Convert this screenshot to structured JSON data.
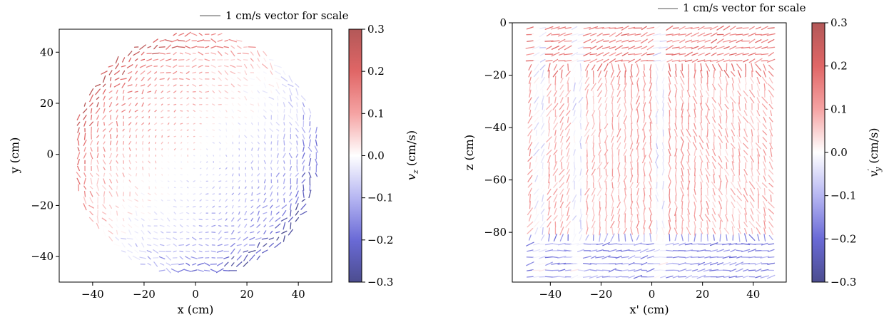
{
  "chart_data": [
    {
      "type": "quiver",
      "title": "",
      "xlabel": "x (cm)",
      "ylabel": "y (cm)",
      "xlim": [
        -53,
        53
      ],
      "ylim": [
        -50,
        49
      ],
      "xticks": [
        -40,
        -20,
        0,
        20,
        40
      ],
      "yticks": [
        -40,
        -20,
        0,
        20,
        40
      ],
      "xtick_labels": [
        "−40",
        "−20",
        "0",
        "20",
        "40"
      ],
      "ytick_labels": [
        "−40",
        "−20",
        "0",
        "20",
        "40"
      ],
      "scale_label": "1 cm/s vector for scale",
      "domain_shape": "disk",
      "domain_radius_cm": 48,
      "grid_spacing_cm": 2.5,
      "color_quantity": "v_z",
      "colorbar": {
        "label_symbol": "v",
        "label_subscript": "z",
        "label_unit": " (cm/s)",
        "range": [
          -0.3,
          0.3
        ],
        "ticks": [
          -0.3,
          -0.2,
          -0.1,
          0.0,
          0.1,
          0.2,
          0.3
        ],
        "tick_labels": [
          "−0.3",
          "−0.2",
          "−0.1",
          "0.0",
          "0.1",
          "0.2",
          "0.3"
        ],
        "colors": [
          "#4c4d8f",
          "#6a6ad6",
          "#b6b6f2",
          "#ffffff",
          "#f5a3a3",
          "#e06666",
          "#b35858"
        ]
      }
    },
    {
      "type": "quiver",
      "title": "",
      "xlabel": "x' (cm)",
      "ylabel": "z (cm)",
      "xlim": [
        -55,
        53
      ],
      "ylim": [
        -99,
        0
      ],
      "xticks": [
        -40,
        -20,
        0,
        20,
        40
      ],
      "yticks": [
        0,
        -20,
        -40,
        -60,
        -80
      ],
      "xtick_labels": [
        "−40",
        "−20",
        "0",
        "20",
        "40"
      ],
      "ytick_labels": [
        "0",
        "−20",
        "−40",
        "−60",
        "−80"
      ],
      "scale_label": "1 cm/s vector for scale",
      "domain_shape": "rectangle",
      "domain_xrange": [
        -48,
        48
      ],
      "domain_zrange": [
        -97,
        -1
      ],
      "grid_spacing_cm": 2.5,
      "color_quantity": "v'_y",
      "colorbar": {
        "label_symbol": "v",
        "label_subscript": "y",
        "label_prime": "′",
        "label_unit": " (cm/s)",
        "range": [
          -0.3,
          0.3
        ],
        "ticks": [
          -0.3,
          -0.2,
          -0.1,
          0.0,
          0.1,
          0.2,
          0.3
        ],
        "tick_labels": [
          "−0.3",
          "−0.2",
          "−0.1",
          "0.0",
          "0.1",
          "0.2",
          "0.3"
        ],
        "colors": [
          "#4c4d8f",
          "#6a6ad6",
          "#b6b6f2",
          "#ffffff",
          "#f5a3a3",
          "#e06666",
          "#b35858"
        ]
      }
    }
  ]
}
